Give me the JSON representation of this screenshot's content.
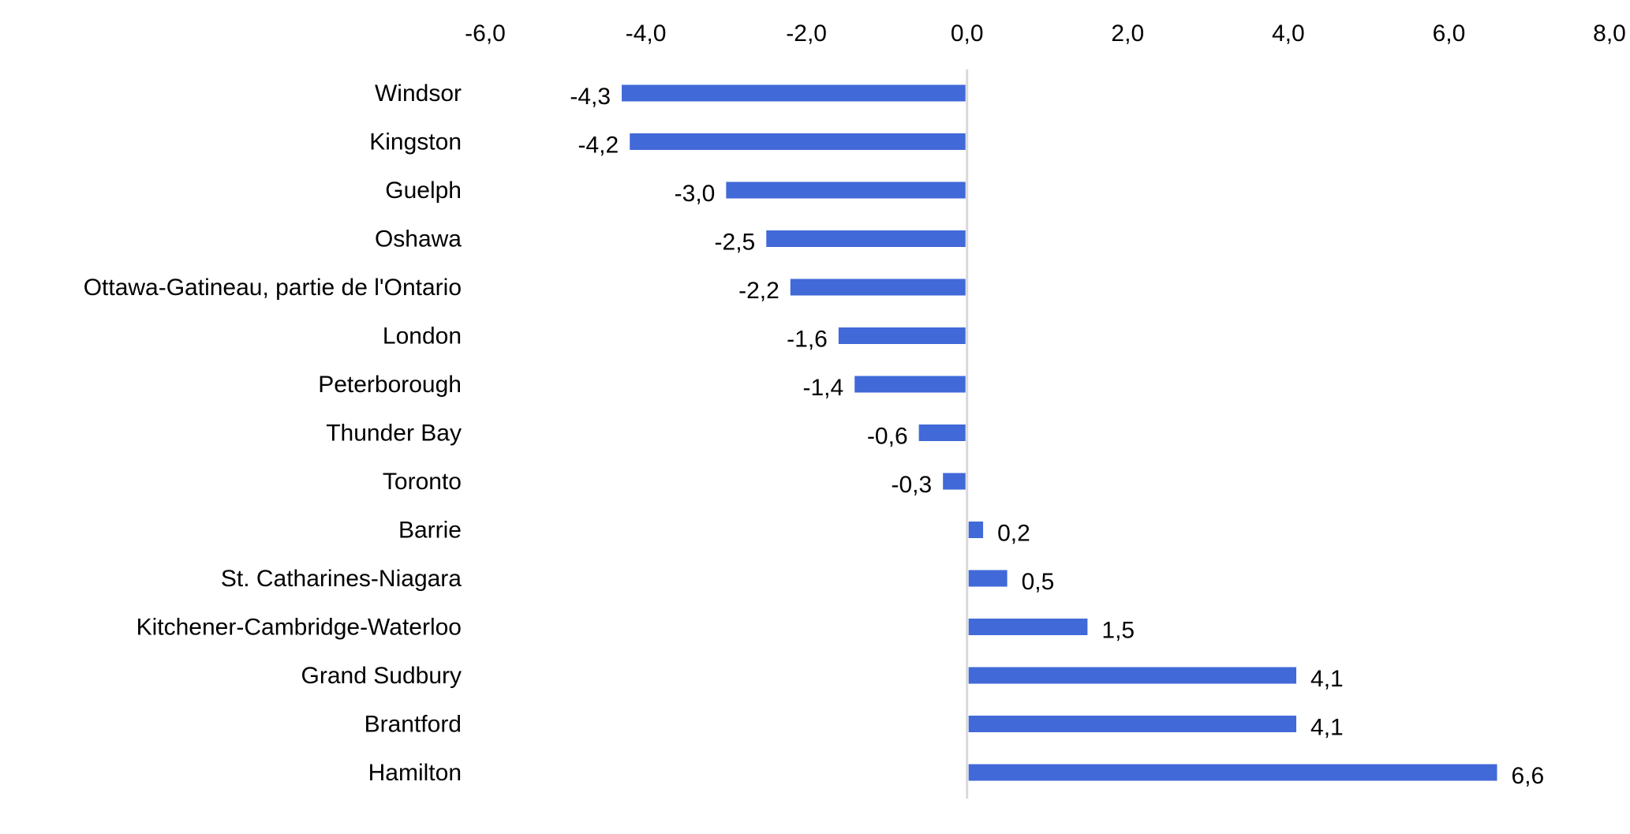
{
  "chart_data": {
    "type": "bar",
    "orientation": "horizontal",
    "title": "",
    "xlabel": "",
    "ylabel": "",
    "x_axis_position": "top",
    "xlim": [
      -6,
      8
    ],
    "x_ticks": [
      -6,
      -4,
      -2,
      0,
      2,
      4,
      6,
      8
    ],
    "x_tick_labels": [
      "-6,0",
      "-4,0",
      "-2,0",
      "0,0",
      "2,0",
      "4,0",
      "6,0",
      "8,0"
    ],
    "grid": false,
    "legend": "none",
    "bar_color": "#4169D8",
    "zero_line_color": "#D9D9D9",
    "categories": [
      "Windsor",
      "Kingston",
      "Guelph",
      "Oshawa",
      "Ottawa-Gatineau, partie de l'Ontario",
      "London",
      "Peterborough",
      "Thunder Bay",
      "Toronto",
      "Barrie",
      "St. Catharines-Niagara",
      "Kitchener-Cambridge-Waterloo",
      "Grand Sudbury",
      "Brantford",
      "Hamilton"
    ],
    "values": [
      -4.3,
      -4.2,
      -3.0,
      -2.5,
      -2.2,
      -1.6,
      -1.4,
      -0.6,
      -0.3,
      0.2,
      0.5,
      1.5,
      4.1,
      4.1,
      6.6
    ],
    "data_labels": [
      "-4,3",
      "-4,2",
      "-3,0",
      "-2,5",
      "-2,2",
      "-1,6",
      "-1,4",
      "-0,6",
      "-0,3",
      "0,2",
      "0,5",
      "1,5",
      "4,1",
      "4,1",
      "6,6"
    ]
  }
}
